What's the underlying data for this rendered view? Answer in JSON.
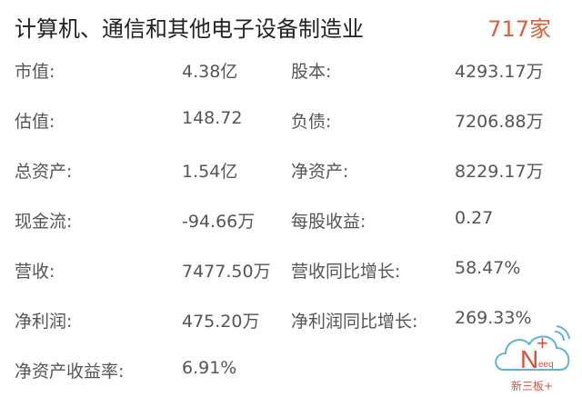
{
  "header": {
    "title": "计算机、通信和其他电子设备制造业",
    "count": "717家"
  },
  "rows": [
    {
      "label1": "市值:",
      "value1": "4.38亿",
      "label2": "股本:",
      "value2": "4293.17万"
    },
    {
      "label1": "估值:",
      "value1": "148.72",
      "label2": "负债:",
      "value2": "7206.88万"
    },
    {
      "label1": "总资产:",
      "value1": "1.54亿",
      "label2": "净资产:",
      "value2": "8229.17万"
    },
    {
      "label1": "现金流:",
      "value1": "-94.66万",
      "label2": "每股收益:",
      "value2": "0.27"
    },
    {
      "label1": "营收:",
      "value1": "7477.50万",
      "label2": "营收同比增长:",
      "value2": "58.47%"
    },
    {
      "label1": "净利润:",
      "value1": "475.20万",
      "label2": "净利润同比增长:",
      "value2": "269.33%"
    },
    {
      "label1": "净资产收益率:",
      "value1": "6.91%",
      "label2": "",
      "value2": ""
    }
  ],
  "logo": {
    "mark": "N+",
    "sub": "eeq",
    "caption": "新三板+"
  },
  "colors": {
    "accent": "#d9603a",
    "text": "#555555",
    "title": "#222222",
    "logo_cloud": "#5fb3d6"
  }
}
